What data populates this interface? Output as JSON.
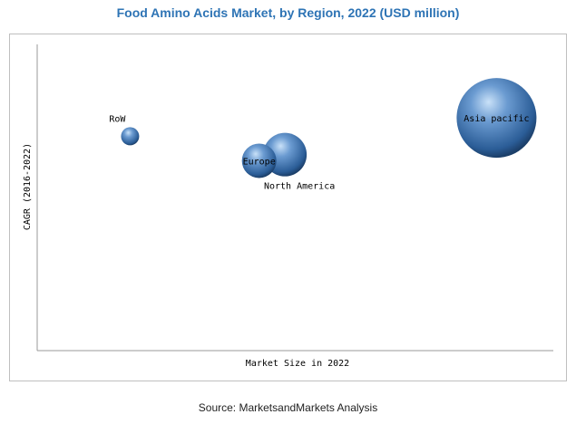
{
  "chart_data": {
    "type": "bubble",
    "title": "Food Amino Acids Market, by Region, 2022 (USD million)",
    "xlabel": "Market Size in 2022",
    "ylabel": "CAGR (2016-2022)",
    "grid": false,
    "legend": "none",
    "points": [
      {
        "label": "RoW",
        "x": 1.8,
        "y": 7.0,
        "size": 1.0
      },
      {
        "label": "North America",
        "x": 4.8,
        "y": 6.4,
        "size": 2.4
      },
      {
        "label": "Europe",
        "x": 4.3,
        "y": 6.2,
        "size": 1.9
      },
      {
        "label": "Asia pacific",
        "x": 8.9,
        "y": 7.6,
        "size": 4.4
      }
    ],
    "xlim": [
      0,
      10
    ],
    "ylim": [
      0,
      10
    ],
    "bubble_color": "#4f81bd"
  },
  "source": "Source: MarketsandMarkets Analysis"
}
